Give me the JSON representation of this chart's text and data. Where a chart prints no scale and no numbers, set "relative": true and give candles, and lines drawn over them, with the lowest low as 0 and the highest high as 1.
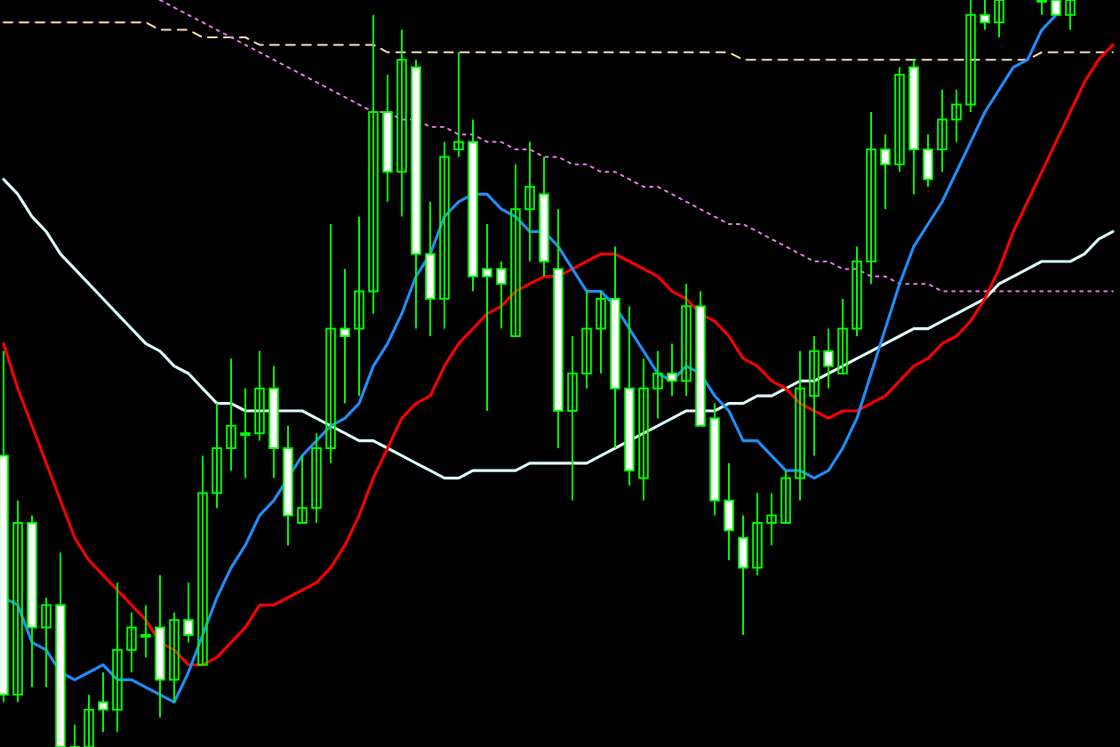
{
  "chart_data": {
    "type": "candlestick",
    "relative": true,
    "color": "#00ff00",
    "categories": [
      null,
      null,
      null,
      null,
      null,
      null,
      null,
      null,
      null,
      null,
      null,
      null,
      null,
      null,
      null,
      null,
      null,
      null,
      null,
      null,
      null,
      null,
      null,
      null,
      null,
      null,
      null,
      null,
      null,
      null,
      null,
      null,
      null,
      null,
      null,
      null,
      null,
      null,
      null,
      null,
      null,
      null,
      null,
      null,
      null,
      null,
      null,
      null,
      null,
      null,
      null,
      null,
      null,
      null,
      null,
      null,
      null,
      null,
      null,
      null,
      null,
      null,
      null,
      null,
      null,
      null,
      null,
      null,
      null,
      null,
      null,
      null,
      null,
      null,
      null,
      null,
      null,
      null,
      null
    ],
    "ohlc": [
      [
        0.39,
        0.53,
        0.06,
        0.07
      ],
      [
        0.07,
        0.33,
        0.06,
        0.3
      ],
      [
        0.3,
        0.31,
        0.08,
        0.16
      ],
      [
        0.16,
        0.2,
        0.08,
        0.19
      ],
      [
        0.19,
        0.26,
        0,
        0
      ],
      [
        0,
        0.03,
        0,
        0
      ],
      [
        0,
        0.07,
        0,
        0.05
      ],
      [
        0.06,
        0.1,
        0.02,
        0.05
      ],
      [
        0.05,
        0.22,
        0.02,
        0.13
      ],
      [
        0.13,
        0.18,
        0.1,
        0.16
      ],
      [
        0.15,
        0.19,
        0.12,
        0.15
      ],
      [
        0.16,
        0.23,
        0.04,
        0.09
      ],
      [
        0.09,
        0.18,
        0.06,
        0.17
      ],
      [
        0.17,
        0.22,
        0.14,
        0.15
      ],
      [
        0.11,
        0.39,
        0.11,
        0.34
      ],
      [
        0.34,
        0.46,
        0.32,
        0.4
      ],
      [
        0.4,
        0.52,
        0.37,
        0.43
      ],
      [
        0.42,
        0.48,
        0.36,
        0.42
      ],
      [
        0.42,
        0.53,
        0.41,
        0.48
      ],
      [
        0.48,
        0.51,
        0.36,
        0.4
      ],
      [
        0.4,
        0.43,
        0.27,
        0.31
      ],
      [
        0.3,
        0.39,
        0.3,
        0.32
      ],
      [
        0.32,
        0.42,
        0.3,
        0.4
      ],
      [
        0.4,
        0.7,
        0.38,
        0.56
      ],
      [
        0.56,
        0.64,
        0.46,
        0.55
      ],
      [
        0.56,
        0.71,
        0.47,
        0.61
      ],
      [
        0.61,
        0.98,
        0.58,
        0.85
      ],
      [
        0.85,
        0.9,
        0.73,
        0.77
      ],
      [
        0.77,
        0.96,
        0.71,
        0.92
      ],
      [
        0.91,
        0.92,
        0.56,
        0.66
      ],
      [
        0.66,
        0.73,
        0.55,
        0.6
      ],
      [
        0.6,
        0.81,
        0.56,
        0.79
      ],
      [
        0.8,
        0.93,
        0.79,
        0.81
      ],
      [
        0.81,
        0.84,
        0.61,
        0.63
      ],
      [
        0.64,
        0.7,
        0.45,
        0.63
      ],
      [
        0.64,
        0.65,
        0.56,
        0.62
      ],
      [
        0.55,
        0.78,
        0.55,
        0.72
      ],
      [
        0.72,
        0.81,
        0.65,
        0.75
      ],
      [
        0.74,
        0.79,
        0.63,
        0.65
      ],
      [
        0.64,
        0.72,
        0.4,
        0.45
      ],
      [
        0.45,
        0.55,
        0.33,
        0.5
      ],
      [
        0.5,
        0.61,
        0.48,
        0.56
      ],
      [
        0.56,
        0.61,
        0.5,
        0.6
      ],
      [
        0.6,
        0.67,
        0.4,
        0.48
      ],
      [
        0.48,
        0.59,
        0.35,
        0.37
      ],
      [
        0.36,
        0.52,
        0.33,
        0.48
      ],
      [
        0.48,
        0.53,
        0.44,
        0.5
      ],
      [
        0.5,
        0.54,
        0.47,
        0.49
      ],
      [
        0.49,
        0.62,
        0.47,
        0.59
      ],
      [
        0.59,
        0.61,
        0.43,
        0.43
      ],
      [
        0.44,
        0.46,
        0.31,
        0.33
      ],
      [
        0.33,
        0.38,
        0.25,
        0.29
      ],
      [
        0.28,
        0.31,
        0.15,
        0.24
      ],
      [
        0.24,
        0.34,
        0.23,
        0.3
      ],
      [
        0.3,
        0.34,
        0.27,
        0.31
      ],
      [
        0.3,
        0.37,
        0.3,
        0.36
      ],
      [
        0.36,
        0.53,
        0.33,
        0.48
      ],
      [
        0.47,
        0.55,
        0.39,
        0.53
      ],
      [
        0.53,
        0.56,
        0.48,
        0.51
      ],
      [
        0.5,
        0.6,
        0.5,
        0.56
      ],
      [
        0.56,
        0.67,
        0.55,
        0.65
      ],
      [
        0.65,
        0.85,
        0.62,
        0.8
      ],
      [
        0.8,
        0.82,
        0.72,
        0.78
      ],
      [
        0.78,
        0.91,
        0.77,
        0.9
      ],
      [
        0.91,
        0.92,
        0.74,
        0.8
      ],
      [
        0.8,
        0.82,
        0.75,
        0.76
      ],
      [
        0.8,
        0.88,
        0.77,
        0.84
      ],
      [
        0.84,
        0.88,
        0.81,
        0.86
      ],
      [
        0.86,
        1,
        0.85,
        0.98
      ],
      [
        0.98,
        1,
        0.96,
        0.97
      ],
      [
        0.97,
        1,
        0.95,
        1
      ],
      null,
      null,
      [
        1,
        1,
        0.98,
        1
      ],
      [
        1,
        1,
        0.98,
        0.98
      ],
      [
        0.98,
        1,
        0.96,
        1
      ],
      null,
      null,
      null
    ],
    "series": [
      {
        "type": "line",
        "color": "#ffe4b5",
        "line_style": "dashed",
        "values": [
          0.97,
          0.97,
          0.97,
          0.97,
          0.97,
          0.97,
          0.97,
          0.97,
          0.97,
          0.97,
          0.97,
          0.96,
          0.96,
          0.96,
          0.95,
          0.95,
          0.95,
          0.95,
          0.94,
          0.94,
          0.94,
          0.94,
          0.94,
          0.94,
          0.94,
          0.94,
          0.94,
          0.93,
          0.93,
          0.93,
          0.93,
          0.93,
          0.93,
          0.93,
          0.93,
          0.93,
          0.93,
          0.93,
          0.93,
          0.93,
          0.93,
          0.93,
          0.93,
          0.93,
          0.93,
          0.93,
          0.93,
          0.93,
          0.93,
          0.93,
          0.93,
          0.93,
          0.92,
          0.92,
          0.92,
          0.92,
          0.92,
          0.92,
          0.92,
          0.92,
          0.92,
          0.92,
          0.92,
          0.92,
          0.92,
          0.92,
          0.92,
          0.92,
          0.92,
          0.92,
          0.92,
          0.92,
          0.92,
          0.93,
          0.93,
          0.93,
          0.93,
          0.93,
          0.93
        ]
      },
      {
        "type": "line",
        "color": "#ee82ee",
        "line_style": "dotted",
        "values": [
          null,
          null,
          null,
          null,
          null,
          null,
          null,
          null,
          null,
          null,
          null,
          1.0,
          0.99,
          0.98,
          0.97,
          0.96,
          0.95,
          0.94,
          0.93,
          0.92,
          0.91,
          0.9,
          0.89,
          0.88,
          0.87,
          0.86,
          0.85,
          0.85,
          0.84,
          0.84,
          0.83,
          0.83,
          0.82,
          0.82,
          0.81,
          0.81,
          0.8,
          0.8,
          0.79,
          0.79,
          0.78,
          0.78,
          0.77,
          0.77,
          0.76,
          0.75,
          0.75,
          0.74,
          0.73,
          0.72,
          0.71,
          0.7,
          0.7,
          0.69,
          0.68,
          0.67,
          0.66,
          0.65,
          0.65,
          0.64,
          0.64,
          0.63,
          0.63,
          0.62,
          0.62,
          0.62,
          0.61,
          0.61,
          0.61,
          0.61,
          0.61,
          0.61,
          0.61,
          0.61,
          0.61,
          0.61,
          0.61,
          0.61,
          0.61
        ]
      },
      {
        "type": "line",
        "color": "#e0ffff",
        "values": [
          0.76,
          0.74,
          0.71,
          0.69,
          0.66,
          0.64,
          0.62,
          0.6,
          0.58,
          0.56,
          0.54,
          0.53,
          0.51,
          0.5,
          0.48,
          0.46,
          0.46,
          0.45,
          0.45,
          0.45,
          0.45,
          0.45,
          0.44,
          0.43,
          0.42,
          0.41,
          0.41,
          0.4,
          0.39,
          0.38,
          0.37,
          0.36,
          0.36,
          0.37,
          0.37,
          0.37,
          0.37,
          0.38,
          0.38,
          0.38,
          0.38,
          0.38,
          0.39,
          0.4,
          0.41,
          0.42,
          0.43,
          0.44,
          0.45,
          0.45,
          0.45,
          0.46,
          0.46,
          0.47,
          0.47,
          0.48,
          0.49,
          0.49,
          0.5,
          0.51,
          0.52,
          0.53,
          0.54,
          0.55,
          0.56,
          0.56,
          0.57,
          0.58,
          0.59,
          0.6,
          0.62,
          0.63,
          0.64,
          0.65,
          0.65,
          0.65,
          0.66,
          0.68,
          0.69
        ]
      },
      {
        "type": "line",
        "color": "#ff0000",
        "values": [
          0.54,
          0.48,
          0.43,
          0.38,
          0.33,
          0.28,
          0.25,
          0.23,
          0.21,
          0.19,
          0.17,
          0.14,
          0.13,
          0.11,
          0.11,
          0.12,
          0.14,
          0.16,
          0.19,
          0.19,
          0.2,
          0.21,
          0.22,
          0.24,
          0.27,
          0.31,
          0.36,
          0.4,
          0.44,
          0.46,
          0.47,
          0.51,
          0.54,
          0.56,
          0.58,
          0.59,
          0.61,
          0.62,
          0.63,
          0.63,
          0.64,
          0.65,
          0.66,
          0.66,
          0.65,
          0.64,
          0.63,
          0.61,
          0.6,
          0.58,
          0.57,
          0.55,
          0.52,
          0.51,
          0.49,
          0.48,
          0.46,
          0.45,
          0.44,
          0.45,
          0.45,
          0.46,
          0.47,
          0.49,
          0.51,
          0.52,
          0.54,
          0.55,
          0.57,
          0.6,
          0.64,
          0.69,
          0.73,
          0.77,
          0.81,
          0.85,
          0.89,
          0.92,
          0.94
        ]
      },
      {
        "type": "line",
        "color": "#1e90ff",
        "values": [
          0.2,
          0.19,
          0.14,
          0.13,
          0.1,
          0.09,
          0.1,
          0.11,
          0.09,
          0.09,
          0.08,
          0.07,
          0.06,
          0.1,
          0.15,
          0.2,
          0.24,
          0.27,
          0.31,
          0.33,
          0.36,
          0.39,
          0.41,
          0.43,
          0.44,
          0.46,
          0.51,
          0.54,
          0.58,
          0.63,
          0.66,
          0.71,
          0.73,
          0.74,
          0.74,
          0.72,
          0.71,
          0.69,
          0.69,
          0.67,
          0.64,
          0.61,
          0.61,
          0.59,
          0.56,
          0.53,
          0.5,
          0.49,
          0.51,
          0.5,
          0.47,
          0.45,
          0.41,
          0.41,
          0.39,
          0.37,
          0.37,
          0.36,
          0.37,
          0.4,
          0.44,
          0.5,
          0.56,
          0.62,
          0.67,
          0.7,
          0.73,
          0.77,
          0.81,
          0.85,
          0.88,
          0.91,
          0.92,
          0.96,
          0.98,
          null,
          null,
          null,
          null
        ]
      }
    ]
  }
}
